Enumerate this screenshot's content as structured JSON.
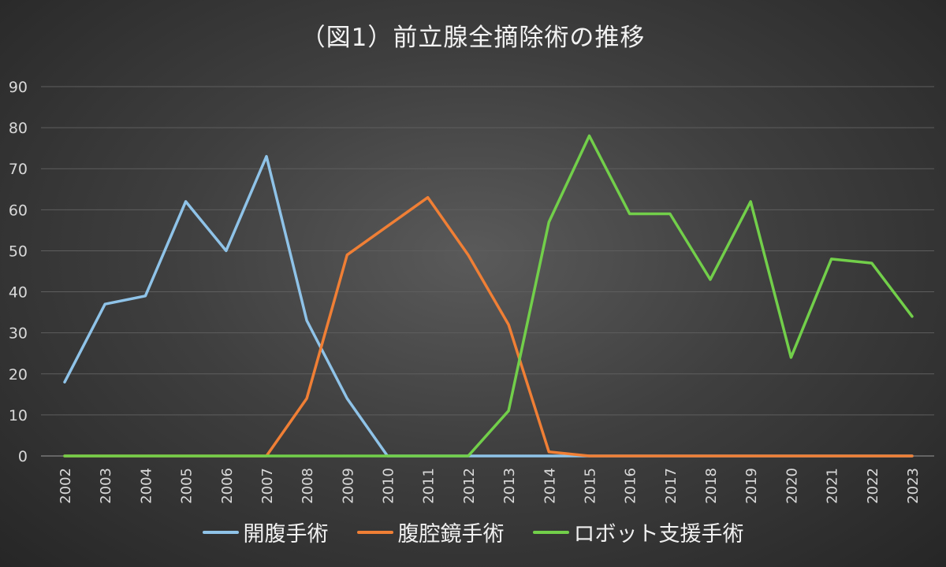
{
  "chart_data": {
    "type": "line",
    "title": "（図1）前立腺全摘除術の推移",
    "xlabel": "",
    "ylabel": "",
    "x": [
      "2002",
      "2003",
      "2004",
      "2005",
      "2006",
      "2007",
      "2008",
      "2009",
      "2010",
      "2011",
      "2012",
      "2013",
      "2014",
      "2015",
      "2016",
      "2017",
      "2018",
      "2019",
      "2020",
      "2021",
      "2022",
      "2023"
    ],
    "ylim": [
      0,
      90
    ],
    "yticks": [
      0,
      10,
      20,
      30,
      40,
      50,
      60,
      70,
      80,
      90
    ],
    "grid": true,
    "legend_position": "bottom",
    "series": [
      {
        "name": "開腹手術",
        "color": "#8fc3e8",
        "values": [
          18,
          37,
          39,
          62,
          50,
          73,
          33,
          14,
          0,
          0,
          0,
          0,
          0,
          0,
          0,
          0,
          0,
          0,
          0,
          0,
          0,
          0
        ]
      },
      {
        "name": "腹腔鏡手術",
        "color": "#f07f35",
        "values": [
          0,
          0,
          0,
          0,
          0,
          0,
          14,
          49,
          56,
          63,
          49,
          32,
          1,
          0,
          0,
          0,
          0,
          0,
          0,
          0,
          0,
          0
        ]
      },
      {
        "name": "ロボット支援手術",
        "color": "#72cf4a",
        "values": [
          0,
          0,
          0,
          0,
          0,
          0,
          0,
          0,
          0,
          0,
          0,
          11,
          57,
          78,
          59,
          59,
          43,
          62,
          24,
          48,
          47,
          34
        ]
      }
    ]
  }
}
